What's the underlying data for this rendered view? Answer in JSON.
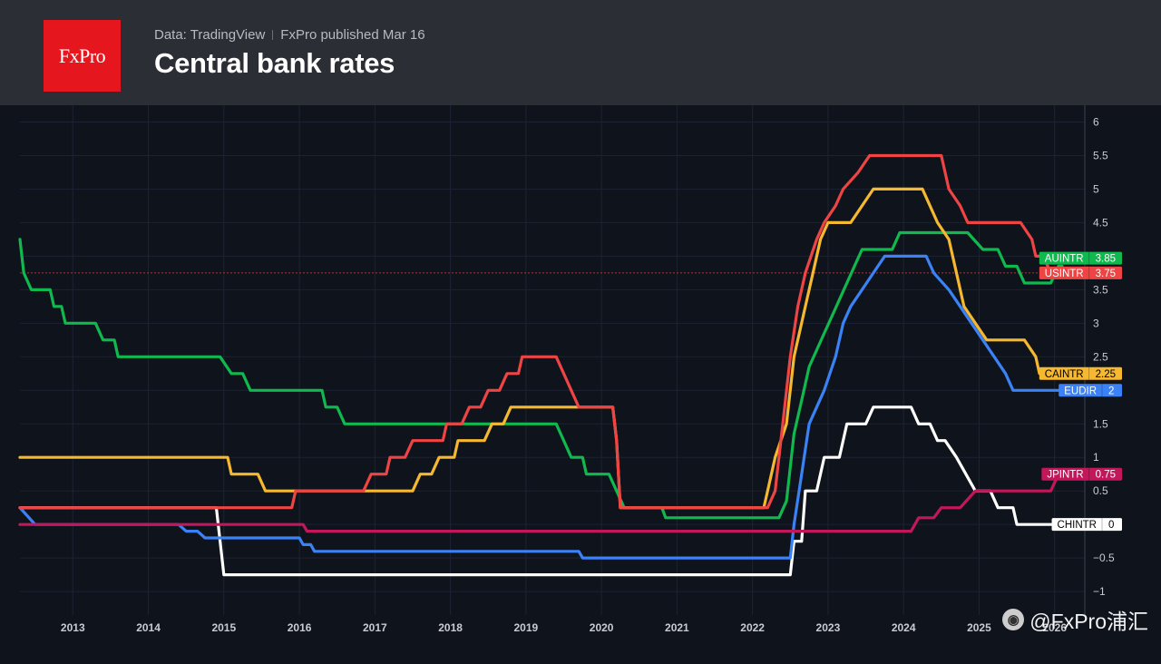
{
  "header": {
    "logo_text": "FxPro",
    "source_data": "Data: TradingView",
    "source_published": "FxPro published Mar 16",
    "title": "Central bank rates"
  },
  "watermark": {
    "text": "@FxPro浦汇"
  },
  "chart_data": {
    "type": "line",
    "title": "Central bank rates",
    "xlabel": "",
    "ylabel": "",
    "x_range": [
      2012.3,
      2026.4
    ],
    "ylim": [
      -1.35,
      6.25
    ],
    "y_ticks": [
      6,
      5.5,
      5,
      4.5,
      4,
      3.5,
      3,
      2.5,
      2,
      1.5,
      1,
      0.5,
      0,
      -0.5,
      -1
    ],
    "y_tick_labels": [
      "6",
      "5.5",
      "5",
      "4.5",
      "4",
      "3.5",
      "3",
      "2.5",
      "2",
      "1.5",
      "1",
      "0.5",
      "0",
      "−0.5",
      "−1"
    ],
    "x_ticks": [
      2013,
      2014,
      2015,
      2016,
      2017,
      2018,
      2019,
      2020,
      2021,
      2022,
      2023,
      2024,
      2025,
      2026
    ],
    "x_tick_labels": [
      "2013",
      "2014",
      "2015",
      "2016",
      "2017",
      "2018",
      "2019",
      "2020",
      "2021",
      "2022",
      "2023",
      "2024",
      "2025",
      "2026"
    ],
    "reference_line": 3.75,
    "colors": {
      "grid": "#1d2332",
      "axis_text": "#c8cbd2",
      "reference": "#a83a3a"
    },
    "series": [
      {
        "name": "CHINTR",
        "value_label": "0",
        "color": "#ffffff",
        "label_text_color": "#000000",
        "points": [
          [
            2012.3,
            0.25
          ],
          [
            2014.9,
            0.25
          ],
          [
            2015.0,
            -0.75
          ],
          [
            2022.5,
            -0.75
          ],
          [
            2022.55,
            -0.25
          ],
          [
            2022.65,
            -0.25
          ],
          [
            2022.7,
            0.5
          ],
          [
            2022.85,
            0.5
          ],
          [
            2022.95,
            1.0
          ],
          [
            2023.15,
            1.0
          ],
          [
            2023.25,
            1.5
          ],
          [
            2023.5,
            1.5
          ],
          [
            2023.6,
            1.75
          ],
          [
            2024.1,
            1.75
          ],
          [
            2024.2,
            1.5
          ],
          [
            2024.35,
            1.5
          ],
          [
            2024.45,
            1.25
          ],
          [
            2024.55,
            1.25
          ],
          [
            2024.7,
            1.0
          ],
          [
            2024.95,
            0.5
          ],
          [
            2025.15,
            0.5
          ],
          [
            2025.25,
            0.25
          ],
          [
            2025.45,
            0.25
          ],
          [
            2025.5,
            0.0
          ],
          [
            2026.1,
            0.0
          ]
        ]
      },
      {
        "name": "EUDIR",
        "value_label": "2",
        "color": "#3b82f6",
        "label_text_color": "#ffffff",
        "points": [
          [
            2012.3,
            0.25
          ],
          [
            2012.5,
            0.0
          ],
          [
            2014.4,
            0.0
          ],
          [
            2014.5,
            -0.1
          ],
          [
            2014.65,
            -0.1
          ],
          [
            2014.75,
            -0.2
          ],
          [
            2016.0,
            -0.2
          ],
          [
            2016.05,
            -0.3
          ],
          [
            2016.15,
            -0.3
          ],
          [
            2016.2,
            -0.4
          ],
          [
            2019.7,
            -0.4
          ],
          [
            2019.75,
            -0.5
          ],
          [
            2022.5,
            -0.5
          ],
          [
            2022.55,
            0.0
          ],
          [
            2022.65,
            0.75
          ],
          [
            2022.75,
            1.5
          ],
          [
            2022.95,
            2.0
          ],
          [
            2023.1,
            2.5
          ],
          [
            2023.2,
            3.0
          ],
          [
            2023.3,
            3.25
          ],
          [
            2023.45,
            3.5
          ],
          [
            2023.6,
            3.75
          ],
          [
            2023.75,
            4.0
          ],
          [
            2024.3,
            4.0
          ],
          [
            2024.4,
            3.75
          ],
          [
            2024.6,
            3.5
          ],
          [
            2024.75,
            3.25
          ],
          [
            2024.9,
            3.0
          ],
          [
            2025.05,
            2.75
          ],
          [
            2025.2,
            2.5
          ],
          [
            2025.35,
            2.25
          ],
          [
            2025.45,
            2.0
          ],
          [
            2026.1,
            2.0
          ]
        ]
      },
      {
        "name": "JPINTR",
        "value_label": "0.75",
        "color": "#c2185b",
        "label_text_color": "#ffffff",
        "points": [
          [
            2012.3,
            0.0
          ],
          [
            2016.05,
            0.0
          ],
          [
            2016.1,
            -0.1
          ],
          [
            2024.1,
            -0.1
          ],
          [
            2024.2,
            0.1
          ],
          [
            2024.4,
            0.1
          ],
          [
            2024.5,
            0.25
          ],
          [
            2024.75,
            0.25
          ],
          [
            2024.95,
            0.5
          ],
          [
            2025.95,
            0.5
          ],
          [
            2026.05,
            0.75
          ],
          [
            2026.1,
            0.75
          ]
        ]
      },
      {
        "name": "AUINTR",
        "value_label": "3.85",
        "color": "#10b94e",
        "label_text_color": "#ffffff",
        "points": [
          [
            2012.3,
            4.25
          ],
          [
            2012.35,
            3.75
          ],
          [
            2012.45,
            3.5
          ],
          [
            2012.7,
            3.5
          ],
          [
            2012.75,
            3.25
          ],
          [
            2012.85,
            3.25
          ],
          [
            2012.9,
            3.0
          ],
          [
            2013.3,
            3.0
          ],
          [
            2013.4,
            2.75
          ],
          [
            2013.55,
            2.75
          ],
          [
            2013.6,
            2.5
          ],
          [
            2014.95,
            2.5
          ],
          [
            2015.1,
            2.25
          ],
          [
            2015.25,
            2.25
          ],
          [
            2015.35,
            2.0
          ],
          [
            2016.3,
            2.0
          ],
          [
            2016.35,
            1.75
          ],
          [
            2016.5,
            1.75
          ],
          [
            2016.6,
            1.5
          ],
          [
            2019.4,
            1.5
          ],
          [
            2019.5,
            1.25
          ],
          [
            2019.6,
            1.0
          ],
          [
            2019.75,
            1.0
          ],
          [
            2019.8,
            0.75
          ],
          [
            2020.1,
            0.75
          ],
          [
            2020.2,
            0.5
          ],
          [
            2020.3,
            0.25
          ],
          [
            2020.8,
            0.25
          ],
          [
            2020.85,
            0.1
          ],
          [
            2022.35,
            0.1
          ],
          [
            2022.45,
            0.35
          ],
          [
            2022.55,
            1.35
          ],
          [
            2022.65,
            1.85
          ],
          [
            2022.75,
            2.35
          ],
          [
            2022.85,
            2.6
          ],
          [
            2022.95,
            2.85
          ],
          [
            2023.05,
            3.1
          ],
          [
            2023.15,
            3.35
          ],
          [
            2023.25,
            3.6
          ],
          [
            2023.35,
            3.85
          ],
          [
            2023.45,
            4.1
          ],
          [
            2023.85,
            4.1
          ],
          [
            2023.95,
            4.35
          ],
          [
            2024.85,
            4.35
          ],
          [
            2025.05,
            4.1
          ],
          [
            2025.25,
            4.1
          ],
          [
            2025.35,
            3.85
          ],
          [
            2025.5,
            3.85
          ],
          [
            2025.6,
            3.6
          ],
          [
            2025.95,
            3.6
          ],
          [
            2026.05,
            3.85
          ],
          [
            2026.1,
            3.85
          ]
        ]
      },
      {
        "name": "CAINTR",
        "value_label": "2.25",
        "color": "#f5b82e",
        "label_text_color": "#000000",
        "points": [
          [
            2012.3,
            1.0
          ],
          [
            2015.05,
            1.0
          ],
          [
            2015.1,
            0.75
          ],
          [
            2015.45,
            0.75
          ],
          [
            2015.55,
            0.5
          ],
          [
            2017.5,
            0.5
          ],
          [
            2017.6,
            0.75
          ],
          [
            2017.75,
            0.75
          ],
          [
            2017.85,
            1.0
          ],
          [
            2018.05,
            1.0
          ],
          [
            2018.1,
            1.25
          ],
          [
            2018.45,
            1.25
          ],
          [
            2018.55,
            1.5
          ],
          [
            2018.7,
            1.5
          ],
          [
            2018.8,
            1.75
          ],
          [
            2020.15,
            1.75
          ],
          [
            2020.2,
            1.25
          ],
          [
            2020.25,
            0.25
          ],
          [
            2022.15,
            0.25
          ],
          [
            2022.2,
            0.5
          ],
          [
            2022.3,
            1.0
          ],
          [
            2022.45,
            1.5
          ],
          [
            2022.55,
            2.5
          ],
          [
            2022.7,
            3.25
          ],
          [
            2022.8,
            3.75
          ],
          [
            2022.9,
            4.25
          ],
          [
            2023.0,
            4.5
          ],
          [
            2023.3,
            4.5
          ],
          [
            2023.45,
            4.75
          ],
          [
            2023.6,
            5.0
          ],
          [
            2024.25,
            5.0
          ],
          [
            2024.35,
            4.75
          ],
          [
            2024.45,
            4.5
          ],
          [
            2024.6,
            4.25
          ],
          [
            2024.7,
            3.75
          ],
          [
            2024.8,
            3.25
          ],
          [
            2024.95,
            3.0
          ],
          [
            2025.1,
            2.75
          ],
          [
            2025.6,
            2.75
          ],
          [
            2025.75,
            2.5
          ],
          [
            2025.8,
            2.25
          ],
          [
            2026.1,
            2.25
          ]
        ]
      },
      {
        "name": "USINTR",
        "value_label": "3.75",
        "color": "#ef4444",
        "label_text_color": "#ffffff",
        "points": [
          [
            2012.3,
            0.25
          ],
          [
            2015.9,
            0.25
          ],
          [
            2015.95,
            0.5
          ],
          [
            2016.85,
            0.5
          ],
          [
            2016.95,
            0.75
          ],
          [
            2017.15,
            0.75
          ],
          [
            2017.2,
            1.0
          ],
          [
            2017.4,
            1.0
          ],
          [
            2017.5,
            1.25
          ],
          [
            2017.9,
            1.25
          ],
          [
            2017.95,
            1.5
          ],
          [
            2018.15,
            1.5
          ],
          [
            2018.25,
            1.75
          ],
          [
            2018.4,
            1.75
          ],
          [
            2018.5,
            2.0
          ],
          [
            2018.65,
            2.0
          ],
          [
            2018.75,
            2.25
          ],
          [
            2018.9,
            2.25
          ],
          [
            2018.95,
            2.5
          ],
          [
            2019.4,
            2.5
          ],
          [
            2019.5,
            2.25
          ],
          [
            2019.6,
            2.0
          ],
          [
            2019.7,
            1.75
          ],
          [
            2020.15,
            1.75
          ],
          [
            2020.2,
            1.25
          ],
          [
            2020.25,
            0.25
          ],
          [
            2022.2,
            0.25
          ],
          [
            2022.3,
            0.5
          ],
          [
            2022.4,
            1.5
          ],
          [
            2022.5,
            2.5
          ],
          [
            2022.6,
            3.25
          ],
          [
            2022.7,
            3.75
          ],
          [
            2022.85,
            4.25
          ],
          [
            2022.95,
            4.5
          ],
          [
            2023.1,
            4.75
          ],
          [
            2023.2,
            5.0
          ],
          [
            2023.4,
            5.25
          ],
          [
            2023.55,
            5.5
          ],
          [
            2024.5,
            5.5
          ],
          [
            2024.6,
            5.0
          ],
          [
            2024.75,
            4.75
          ],
          [
            2024.85,
            4.5
          ],
          [
            2025.55,
            4.5
          ],
          [
            2025.7,
            4.25
          ],
          [
            2025.75,
            4.0
          ],
          [
            2025.85,
            4.0
          ],
          [
            2025.95,
            3.75
          ],
          [
            2026.1,
            3.75
          ]
        ]
      }
    ],
    "labels": [
      {
        "name": "AUINTR",
        "value": "3.85",
        "color": "#10b94e",
        "text_color": "#ffffff",
        "at": 3.97
      },
      {
        "name": "USINTR",
        "value": "3.75",
        "color": "#ef4444",
        "text_color": "#ffffff",
        "at": 3.75
      },
      {
        "name": "CAINTR",
        "value": "2.25",
        "color": "#f5b82e",
        "text_color": "#000000",
        "at": 2.25
      },
      {
        "name": "EUDIR",
        "value": "2",
        "color": "#3b82f6",
        "text_color": "#ffffff",
        "at": 2.0
      },
      {
        "name": "JPINTR",
        "value": "0.75",
        "color": "#c2185b",
        "text_color": "#ffffff",
        "at": 0.75
      },
      {
        "name": "CHINTR",
        "value": "0",
        "color": "#ffffff",
        "text_color": "#000000",
        "at": 0.0
      }
    ]
  }
}
